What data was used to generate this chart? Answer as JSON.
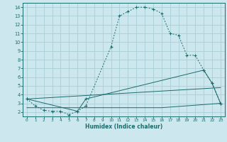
{
  "xlabel": "Humidex (Indice chaleur)",
  "bg_color": "#cce8ee",
  "grid_color": "#aacdd6",
  "line_color": "#1a6b6b",
  "xlim": [
    -0.5,
    23.5
  ],
  "ylim": [
    1.5,
    14.5
  ],
  "xticks": [
    0,
    1,
    2,
    3,
    4,
    5,
    6,
    7,
    8,
    9,
    10,
    11,
    12,
    13,
    14,
    15,
    16,
    17,
    18,
    19,
    20,
    21,
    22,
    23
  ],
  "yticks": [
    2,
    3,
    4,
    5,
    6,
    7,
    8,
    9,
    10,
    11,
    12,
    13,
    14
  ],
  "line1_x": [
    0,
    1,
    2,
    3,
    4,
    5,
    6,
    7,
    10,
    11,
    12,
    13,
    14,
    15,
    16,
    17,
    18,
    19,
    20,
    21,
    22,
    23
  ],
  "line1_y": [
    3.5,
    2.7,
    2.2,
    2.1,
    2.1,
    1.7,
    2.1,
    2.7,
    9.5,
    13.0,
    13.5,
    14.0,
    14.0,
    13.8,
    13.3,
    11.0,
    10.8,
    8.5,
    8.5,
    6.8,
    5.3,
    3.0
  ],
  "line2_x": [
    0,
    6,
    7,
    21,
    22,
    23
  ],
  "line2_y": [
    3.5,
    2.1,
    3.5,
    6.8,
    5.3,
    3.0
  ],
  "line3_x": [
    0,
    16,
    23
  ],
  "line3_y": [
    2.5,
    2.5,
    3.0
  ],
  "line4_x": [
    0,
    23
  ],
  "line4_y": [
    3.5,
    4.8
  ]
}
